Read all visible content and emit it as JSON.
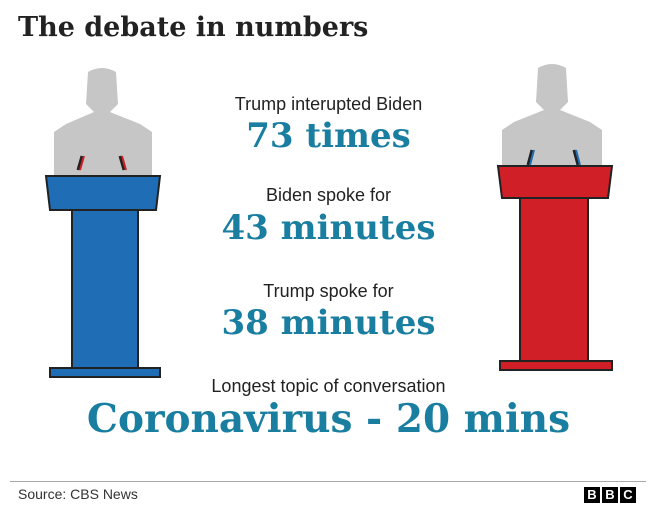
{
  "title": "The debate in numbers",
  "stats": [
    {
      "label": "Trump interupted Biden",
      "value": "73 times"
    },
    {
      "label": "Biden spoke for",
      "value": "43 minutes"
    },
    {
      "label": "Trump spoke for",
      "value": "38 minutes"
    },
    {
      "label": "Longest topic of conversation",
      "value": "Coronavirus - 20 mins"
    }
  ],
  "source": "Source: CBS News",
  "logo": [
    "B",
    "B",
    "C"
  ]
}
